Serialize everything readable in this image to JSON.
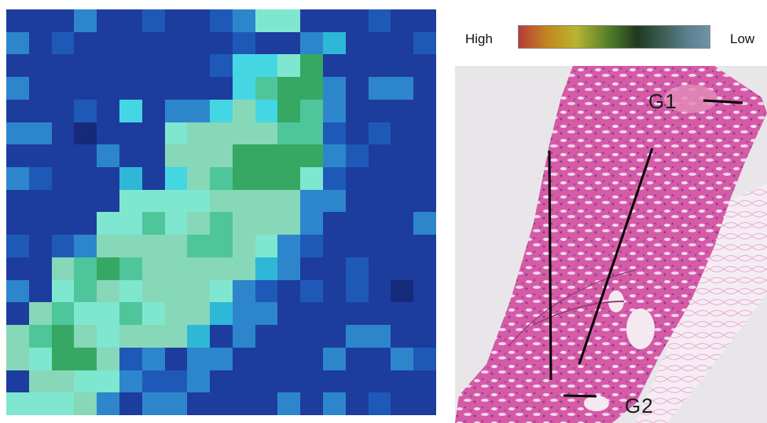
{
  "legend": {
    "high_label": "High",
    "low_label": "Low",
    "gradient_colors": [
      "#b73b3b",
      "#c2871f",
      "#b9b430",
      "#4f7b2b",
      "#203820",
      "#3a5a4e",
      "#5a7f8c",
      "#6f93a8"
    ]
  },
  "histology": {
    "label_g1": "G1",
    "label_g2": "G2",
    "tissue_color": "#d65aa5",
    "background_color": "#e8e6e9"
  },
  "heatmap": {
    "columns": 19,
    "rows": 18,
    "palette": {
      "0": "#1c3d9e",
      "1": "#1f59b8",
      "2": "#2d86cc",
      "3": "#2fb7d8",
      "4": "#45d6e4",
      "5": "#7fe6cf",
      "6": "#86d8b8",
      "7": "#4fc59b",
      "8": "#36a863",
      "9": "#162a7a"
    },
    "cells": [
      "0002001001255000100",
      "2010000000100230001",
      "0000000001445800000",
      "2000000000478820220",
      "0001040224648720000",
      "2209000566667710100",
      "0000200666888821000",
      "2100030467888510000",
      "0000055556666220000",
      "0000557567666200002",
      "1012666677652100000",
      "0067876666632001000",
      "2057656665210101090",
      "0675575663220000000",
      "6786566630200002200",
      "6588612022000020021",
      "0665521120000000000",
      "5556202200002020100"
    ]
  }
}
